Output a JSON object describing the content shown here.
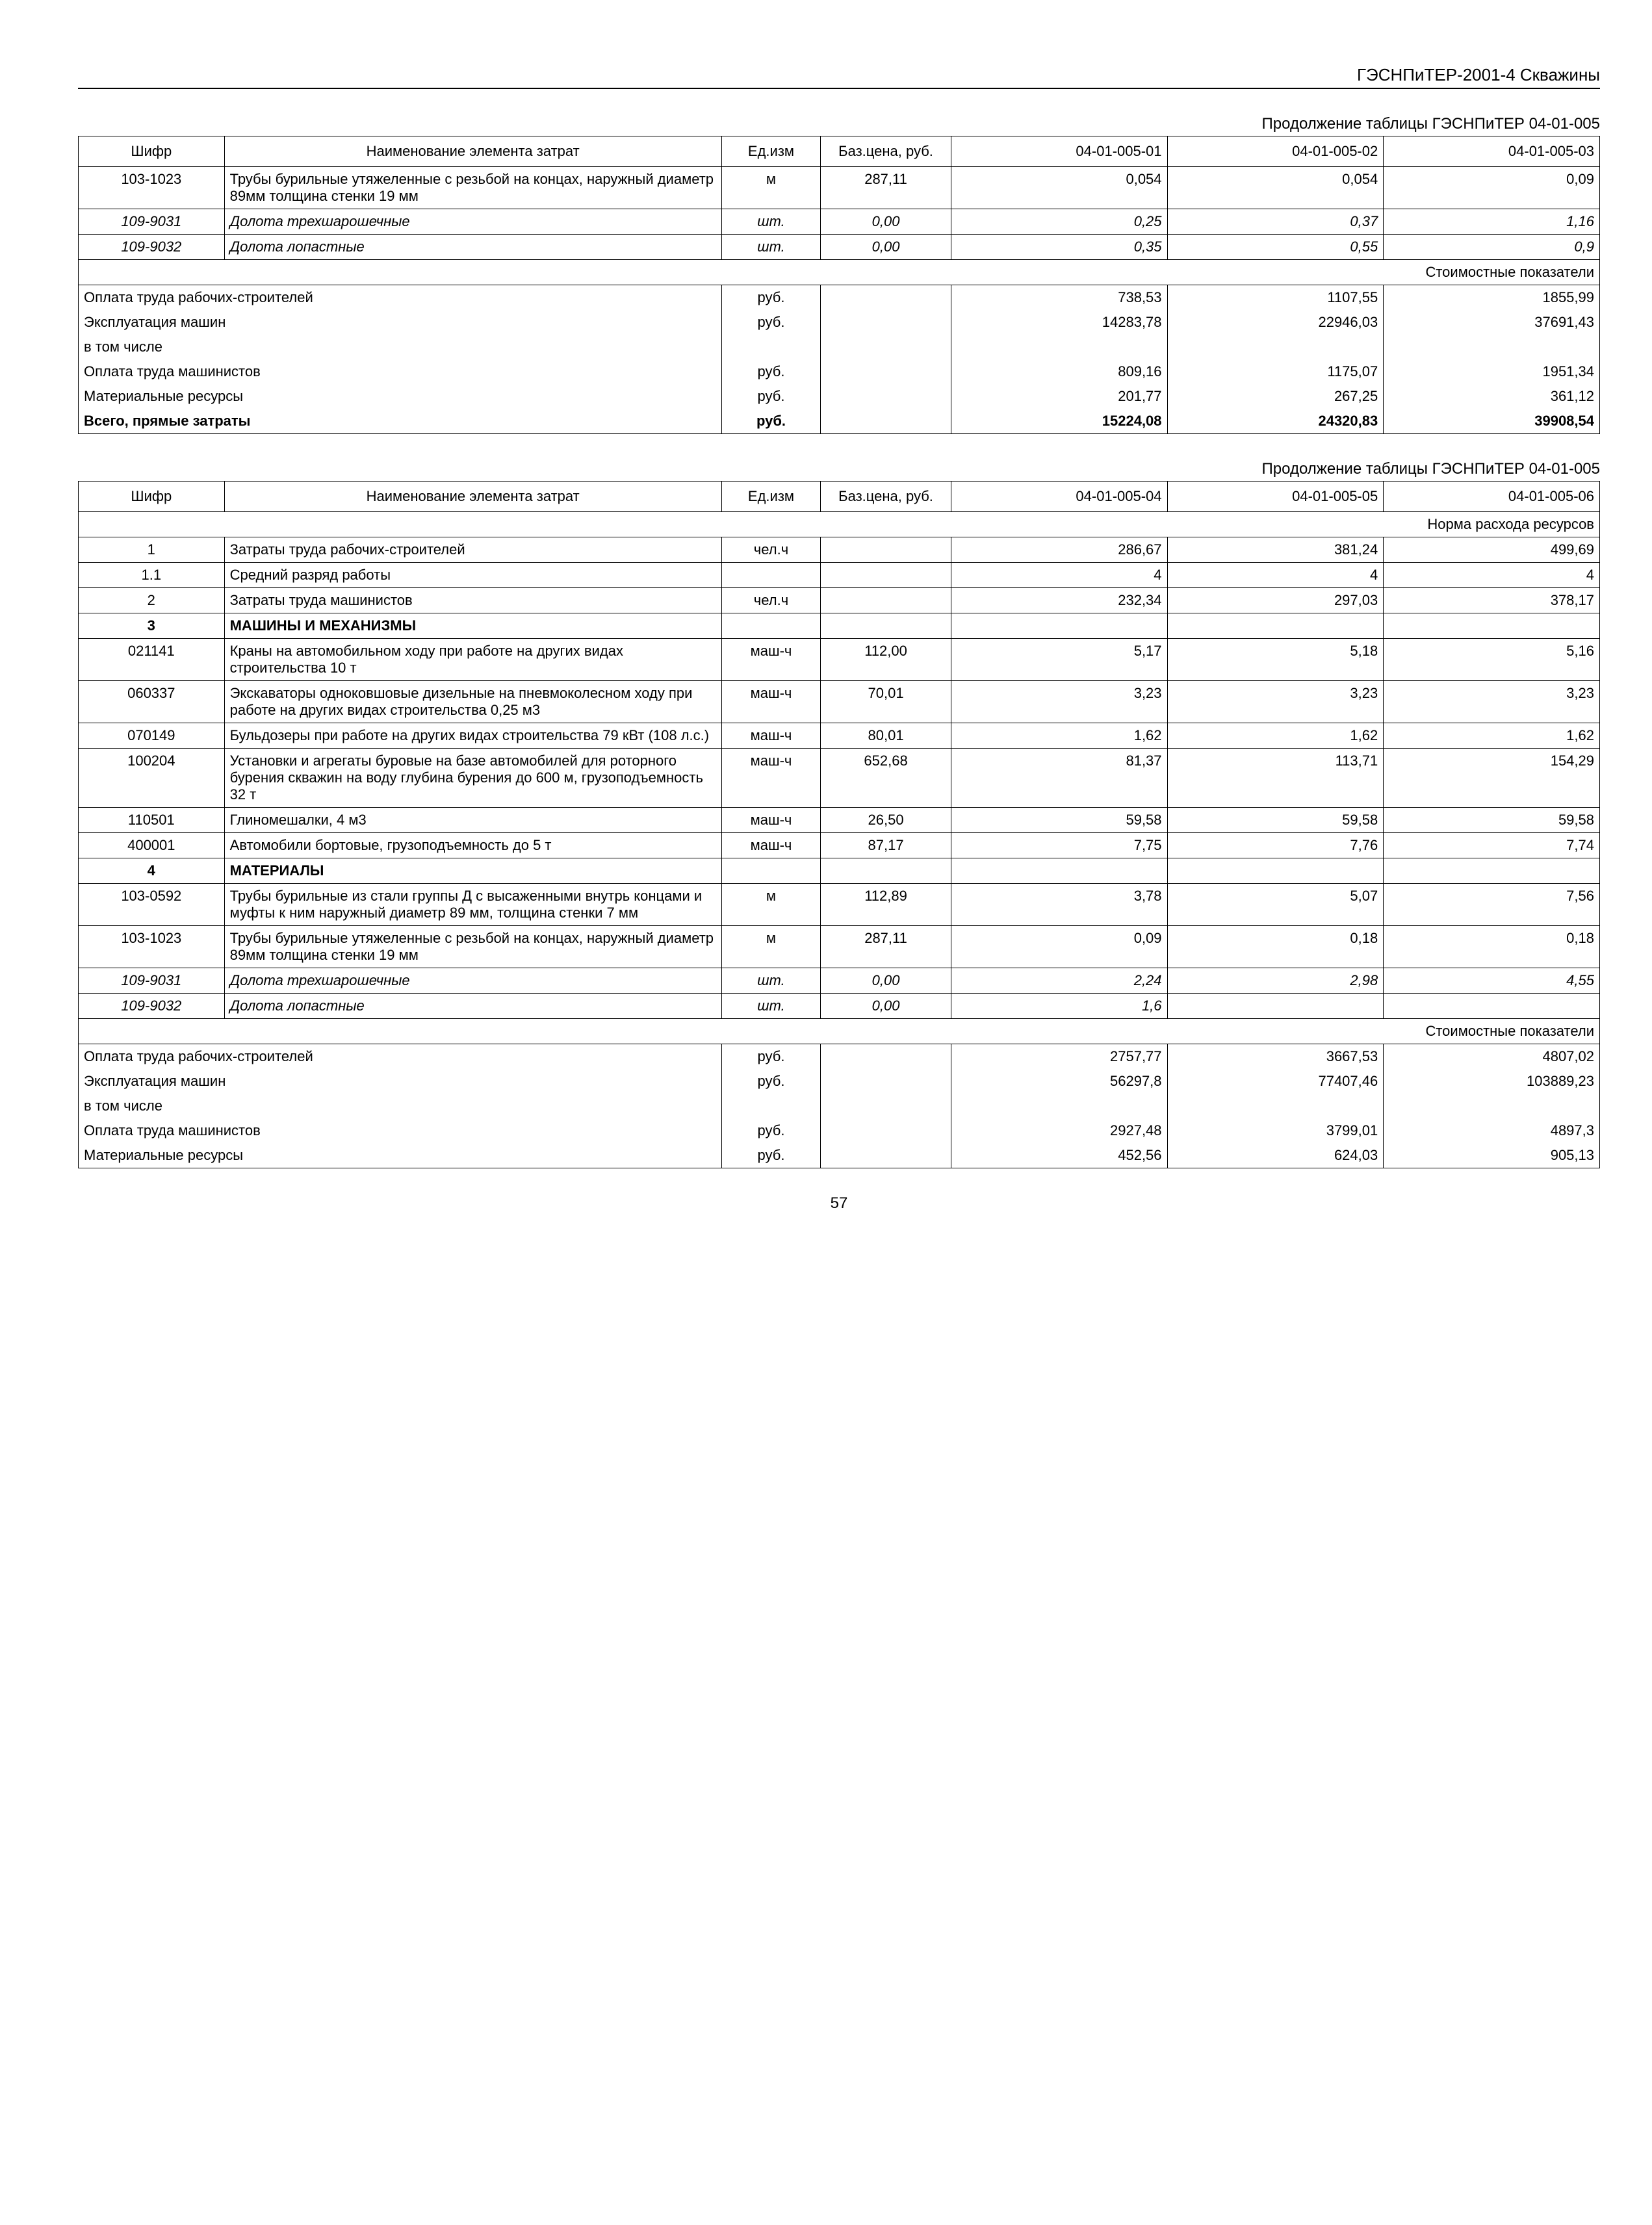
{
  "doc_header": "ГЭСНПиТЕР-2001-4 Скважины",
  "page_number": "57",
  "table1": {
    "caption": "Продолжение таблицы ГЭСНПиТЕР 04-01-005",
    "headers": {
      "shifr": "Шифр",
      "name": "Наименование элемента затрат",
      "ed": "Ед.изм",
      "baz": "Баз.цена, руб.",
      "c1": "04-01-005-01",
      "c2": "04-01-005-02",
      "c3": "04-01-005-03"
    },
    "rows": [
      {
        "shifr": "103-1023",
        "name": "Трубы бурильные утяжеленные с резьбой на концах, наружный диаметр 89мм толщина стенки 19 мм",
        "ed": "м",
        "baz": "287,11",
        "v1": "0,054",
        "v2": "0,054",
        "v3": "0,09"
      },
      {
        "shifr": "109-9031",
        "name": "Долота трехшарошечные",
        "ed": "шт.",
        "baz": "0,00",
        "v1": "0,25",
        "v2": "0,37",
        "v3": "1,16",
        "italic": true
      },
      {
        "shifr": "109-9032",
        "name": "Долота лопастные",
        "ed": "шт.",
        "baz": "0,00",
        "v1": "0,35",
        "v2": "0,55",
        "v3": "0,9",
        "italic": true
      }
    ],
    "cost_banner": "Стоимостные показатели",
    "cost_rows": [
      {
        "name": "Оплата труда рабочих-строителей",
        "ed": "руб.",
        "v1": "738,53",
        "v2": "1107,55",
        "v3": "1855,99"
      },
      {
        "name": "Эксплуатация машин",
        "ed": "руб.",
        "v1": "14283,78",
        "v2": "22946,03",
        "v3": "37691,43"
      },
      {
        "name": "в том числе",
        "ed": "",
        "v1": "",
        "v2": "",
        "v3": ""
      },
      {
        "name": "Оплата труда машинистов",
        "ed": "руб.",
        "v1": "809,16",
        "v2": "1175,07",
        "v3": "1951,34"
      },
      {
        "name": "Материальные ресурсы",
        "ed": "руб.",
        "v1": "201,77",
        "v2": "267,25",
        "v3": "361,12"
      },
      {
        "name": "Всего, прямые затраты",
        "ed": "руб.",
        "v1": "15224,08",
        "v2": "24320,83",
        "v3": "39908,54",
        "bold": true
      }
    ]
  },
  "table2": {
    "caption": "Продолжение таблицы ГЭСНПиТЕР 04-01-005",
    "headers": {
      "shifr": "Шифр",
      "name": "Наименование элемента затрат",
      "ed": "Ед.изм",
      "baz": "Баз.цена, руб.",
      "c1": "04-01-005-04",
      "c2": "04-01-005-05",
      "c3": "04-01-005-06"
    },
    "norm_banner": "Норма расхода ресурсов",
    "rows": [
      {
        "shifr": "1",
        "name": "Затраты труда рабочих-строителей",
        "ed": "чел.ч",
        "baz": "",
        "v1": "286,67",
        "v2": "381,24",
        "v3": "499,69"
      },
      {
        "shifr": "1.1",
        "name": "Средний разряд работы",
        "ed": "",
        "baz": "",
        "v1": "4",
        "v2": "4",
        "v3": "4"
      },
      {
        "shifr": "2",
        "name": "Затраты труда машинистов",
        "ed": "чел.ч",
        "baz": "",
        "v1": "232,34",
        "v2": "297,03",
        "v3": "378,17"
      },
      {
        "shifr": "3",
        "name": "МАШИНЫ И МЕХАНИЗМЫ",
        "section": true
      },
      {
        "shifr": "021141",
        "name": "Краны на автомобильном ходу при работе на других видах строительства 10 т",
        "ed": "маш-ч",
        "baz": "112,00",
        "v1": "5,17",
        "v2": "5,18",
        "v3": "5,16"
      },
      {
        "shifr": "060337",
        "name": "Экскаваторы одноковшовые дизельные на пневмоколесном ходу при работе на других видах строительства 0,25 м3",
        "ed": "маш-ч",
        "baz": "70,01",
        "v1": "3,23",
        "v2": "3,23",
        "v3": "3,23"
      },
      {
        "shifr": "070149",
        "name": "Бульдозеры при работе на других видах строительства 79 кВт (108 л.с.)",
        "ed": "маш-ч",
        "baz": "80,01",
        "v1": "1,62",
        "v2": "1,62",
        "v3": "1,62"
      },
      {
        "shifr": "100204",
        "name": "Установки и агрегаты буровые на базе автомобилей для роторного бурения скважин на воду глубина бурения до 600 м, грузоподъемность 32 т",
        "ed": "маш-ч",
        "baz": "652,68",
        "v1": "81,37",
        "v2": "113,71",
        "v3": "154,29"
      },
      {
        "shifr": "110501",
        "name": "Глиномешалки, 4 м3",
        "ed": "маш-ч",
        "baz": "26,50",
        "v1": "59,58",
        "v2": "59,58",
        "v3": "59,58"
      },
      {
        "shifr": "400001",
        "name": "Автомобили бортовые, грузоподъемность до 5 т",
        "ed": "маш-ч",
        "baz": "87,17",
        "v1": "7,75",
        "v2": "7,76",
        "v3": "7,74"
      },
      {
        "shifr": "4",
        "name": "МАТЕРИАЛЫ",
        "section": true
      },
      {
        "shifr": "103-0592",
        "name": "Трубы бурильные из стали группы Д с высаженными внутрь концами и муфты к ним наружный диаметр 89 мм, толщина стенки 7 мм",
        "ed": "м",
        "baz": "112,89",
        "v1": "3,78",
        "v2": "5,07",
        "v3": "7,56"
      },
      {
        "shifr": "103-1023",
        "name": "Трубы бурильные утяжеленные с резьбой на концах, наружный диаметр 89мм толщина стенки 19 мм",
        "ed": "м",
        "baz": "287,11",
        "v1": "0,09",
        "v2": "0,18",
        "v3": "0,18"
      },
      {
        "shifr": "109-9031",
        "name": "Долота трехшарошечные",
        "ed": "шт.",
        "baz": "0,00",
        "v1": "2,24",
        "v2": "2,98",
        "v3": "4,55",
        "italic": true
      },
      {
        "shifr": "109-9032",
        "name": "Долота лопастные",
        "ed": "шт.",
        "baz": "0,00",
        "v1": "1,6",
        "v2": "",
        "v3": "",
        "italic": true
      }
    ],
    "cost_banner": "Стоимостные показатели",
    "cost_rows": [
      {
        "name": "Оплата труда рабочих-строителей",
        "ed": "руб.",
        "v1": "2757,77",
        "v2": "3667,53",
        "v3": "4807,02"
      },
      {
        "name": "Эксплуатация машин",
        "ed": "руб.",
        "v1": "56297,8",
        "v2": "77407,46",
        "v3": "103889,23"
      },
      {
        "name": "в том числе",
        "ed": "",
        "v1": "",
        "v2": "",
        "v3": ""
      },
      {
        "name": "Оплата труда машинистов",
        "ed": "руб.",
        "v1": "2927,48",
        "v2": "3799,01",
        "v3": "4897,3"
      },
      {
        "name": "Материальные ресурсы",
        "ed": "руб.",
        "v1": "452,56",
        "v2": "624,03",
        "v3": "905,13"
      }
    ]
  }
}
